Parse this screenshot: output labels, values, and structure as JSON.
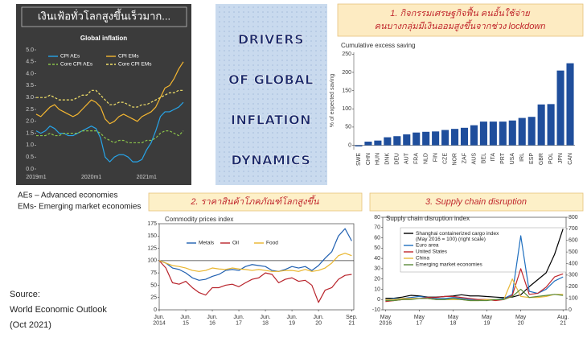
{
  "banner": [
    "DRIVERS",
    "OF GLOBAL",
    "INFLATION",
    "DYNAMICS"
  ],
  "notes": [
    "AEs – Advanced economies",
    "EMs- Emerging market economies"
  ],
  "source": [
    "Source:",
    "World Economic Outlook",
    "(Oct 2021)"
  ],
  "chart_data": [
    {
      "type": "line",
      "header": [
        "เงินเฟ้อทั่วโลกสูงขึ้นเร็วมาก..."
      ],
      "title": "Global inflation",
      "categories": [
        "2019m1",
        null,
        null,
        null,
        null,
        null,
        null,
        null,
        null,
        null,
        null,
        null,
        "2020m1",
        null,
        null,
        null,
        null,
        null,
        null,
        null,
        null,
        null,
        null,
        null,
        "2021m1",
        null,
        null,
        null,
        null,
        null,
        null,
        null,
        null
      ],
      "ylim": [
        0,
        5
      ],
      "yticks": [
        {
          "value": 0,
          "label": "0.0"
        },
        0.5,
        {
          "value": 1,
          "label": "1.0"
        },
        1.5,
        {
          "value": 2,
          "label": "2.0"
        },
        2.5,
        {
          "value": 3,
          "label": "3.0"
        },
        3.5,
        {
          "value": 4,
          "label": "4.0"
        },
        4.5,
        {
          "value": 5,
          "label": "5.0"
        }
      ],
      "grid": false,
      "series": [
        {
          "name": "CPI AEs",
          "color": "#27a4e8",
          "dashed": false,
          "values": [
            1.6,
            1.5,
            1.6,
            1.8,
            1.7,
            1.5,
            1.5,
            1.4,
            1.4,
            1.5,
            1.6,
            1.7,
            1.8,
            1.7,
            1.3,
            0.5,
            0.3,
            0.5,
            0.6,
            0.6,
            0.5,
            0.3,
            0.3,
            0.4,
            0.8,
            1.1,
            1.6,
            2.2,
            2.4,
            2.4,
            2.5,
            2.6,
            2.8
          ]
        },
        {
          "name": "CPI EMs",
          "color": "#f5b731",
          "dashed": false,
          "values": [
            2.3,
            2.2,
            2.4,
            2.6,
            2.7,
            2.5,
            2.4,
            2.3,
            2.2,
            2.3,
            2.5,
            2.7,
            2.9,
            2.8,
            2.6,
            2.1,
            1.9,
            2.0,
            2.2,
            2.3,
            2.2,
            2.1,
            2.0,
            2.2,
            2.3,
            2.4,
            2.6,
            3.0,
            3.4,
            3.5,
            3.8,
            4.2,
            4.5
          ]
        },
        {
          "name": "Core CPI AEs",
          "color": "#8bc34a",
          "dashed": true,
          "values": [
            1.4,
            1.4,
            1.4,
            1.5,
            1.4,
            1.4,
            1.5,
            1.5,
            1.5,
            1.5,
            1.6,
            1.6,
            1.6,
            1.6,
            1.5,
            1.3,
            1.2,
            1.1,
            1.2,
            1.2,
            1.1,
            1.1,
            1.1,
            1.1,
            1.2,
            1.2,
            1.3,
            1.5,
            1.6,
            1.6,
            1.5,
            1.4,
            1.6
          ]
        },
        {
          "name": "Core CPI EMs",
          "color": "#f5e36a",
          "dashed": true,
          "values": [
            3.0,
            3.0,
            3.0,
            3.1,
            3.0,
            2.9,
            2.9,
            2.9,
            2.9,
            3.0,
            3.1,
            3.1,
            3.3,
            3.3,
            3.1,
            2.9,
            2.7,
            2.7,
            2.8,
            2.8,
            2.7,
            2.6,
            2.6,
            2.7,
            2.7,
            2.8,
            2.9,
            3.0,
            3.1,
            3.2,
            3.2,
            3.3,
            3.3
          ]
        }
      ],
      "legend": "top"
    },
    {
      "type": "bar",
      "header": [
        "1. กิจกรรมเศรษฐกิจฟื้น คนอั้นใช้จ่าย",
        "คนบางกลุ่มมีเงินออมสูงขึ้นจากช่วง lockdown"
      ],
      "title": "Cumulative excess saving",
      "ylabel": "% of expected saving",
      "categories": [
        "SWE",
        "CHN",
        "HUN",
        "DNK",
        "DEU",
        "AUT",
        "FRA",
        "NLD",
        "FIN",
        "CZE",
        "NOR",
        "ZAF",
        "AUS",
        "BEL",
        "ITA",
        "PRT",
        "USA",
        "IRL",
        "ESP",
        "GBR",
        "POL",
        "JPN",
        "CAN"
      ],
      "values": [
        -3,
        10,
        13,
        22,
        25,
        30,
        35,
        37,
        38,
        42,
        45,
        48,
        55,
        65,
        65,
        65,
        68,
        75,
        78,
        112,
        113,
        205,
        225
      ],
      "color": "#1f4e9c",
      "ylim": [
        -12,
        255
      ],
      "yticks": [
        0,
        50,
        100,
        150,
        200,
        250
      ],
      "grid": false
    },
    {
      "type": "line",
      "header": [
        "2. ราคาสินค้าโภคภัณฑ์โลกสูงขึ้น"
      ],
      "title": "Commodity prices index",
      "x": [
        2014.42,
        2014.67,
        2014.92,
        2015.17,
        2015.42,
        2015.67,
        2015.92,
        2016.17,
        2016.42,
        2016.67,
        2016.92,
        2017.17,
        2017.42,
        2017.67,
        2017.92,
        2018.17,
        2018.42,
        2018.67,
        2018.92,
        2019.17,
        2019.42,
        2019.67,
        2019.92,
        2020.17,
        2020.42,
        2020.67,
        2020.92,
        2021.17,
        2021.42,
        2021.67
      ],
      "xlim": [
        2014.42,
        2021.75
      ],
      "xticks": [
        {
          "value": 2014.42,
          "label": "Jun.\n2014"
        },
        {
          "value": 2015.42,
          "label": "Jun.\n15"
        },
        {
          "value": 2016.42,
          "label": "Jun.\n16"
        },
        {
          "value": 2017.42,
          "label": "Jun.\n17"
        },
        {
          "value": 2018.42,
          "label": "Jun.\n18"
        },
        {
          "value": 2019.42,
          "label": "Jun.\n19"
        },
        {
          "value": 2020.42,
          "label": "Jun.\n20"
        },
        {
          "value": 2021.67,
          "label": "Sep.\n21"
        }
      ],
      "ylim": [
        0,
        175
      ],
      "yticks": [
        0,
        25,
        50,
        75,
        100,
        125,
        150,
        175
      ],
      "reference_line": 100,
      "grid": false,
      "series": [
        {
          "name": "Metals",
          "color": "#1f5fb0",
          "dashed": false,
          "values": [
            100,
            95,
            85,
            82,
            75,
            65,
            60,
            62,
            68,
            72,
            80,
            82,
            80,
            88,
            92,
            90,
            88,
            80,
            78,
            82,
            88,
            85,
            88,
            80,
            90,
            105,
            118,
            150,
            165,
            140
          ]
        },
        {
          "name": "Oil",
          "color": "#b8232b",
          "dashed": false,
          "values": [
            100,
            85,
            55,
            52,
            58,
            45,
            35,
            30,
            45,
            45,
            50,
            52,
            47,
            55,
            62,
            65,
            75,
            72,
            55,
            62,
            65,
            58,
            60,
            50,
            15,
            40,
            45,
            62,
            70,
            72
          ]
        },
        {
          "name": "Food",
          "color": "#e9b52c",
          "dashed": false,
          "values": [
            100,
            95,
            90,
            88,
            85,
            80,
            78,
            80,
            85,
            83,
            82,
            85,
            83,
            82,
            80,
            82,
            80,
            78,
            78,
            80,
            80,
            78,
            82,
            78,
            80,
            85,
            95,
            110,
            115,
            110
          ]
        }
      ],
      "legend": "top"
    },
    {
      "type": "line",
      "header": [
        "3. Supply chain disruption"
      ],
      "title": "Supply chain disruption index",
      "x": [
        2016.33,
        2016.58,
        2016.83,
        2017.08,
        2017.33,
        2017.58,
        2017.83,
        2018.08,
        2018.33,
        2018.58,
        2018.83,
        2019.08,
        2019.33,
        2019.58,
        2019.83,
        2020.08,
        2020.33,
        2020.58,
        2020.83,
        2021.08,
        2021.33,
        2021.58
      ],
      "xlim": [
        2016.25,
        2021.67
      ],
      "xticks": [
        {
          "value": 2016.33,
          "label": "May\n2016"
        },
        {
          "value": 2017.33,
          "label": "May\n17"
        },
        {
          "value": 2018.33,
          "label": "May\n18"
        },
        {
          "value": 2019.33,
          "label": "May\n19"
        },
        {
          "value": 2020.33,
          "label": "May\n20"
        },
        {
          "value": 2021.58,
          "label": "Aug.\n21"
        }
      ],
      "ylim": [
        -10,
        80
      ],
      "yticks": [
        -10,
        0,
        10,
        20,
        30,
        40,
        50,
        60,
        70,
        80
      ],
      "y2lim": [
        0,
        800
      ],
      "y2ticks": [
        0,
        100,
        200,
        300,
        400,
        500,
        600,
        700,
        800
      ],
      "grid": false,
      "series": [
        {
          "name": "Shanghai containerized cargo index (May 2016 = 100) (right scale)",
          "color": "#000000",
          "dashed": false,
          "axis": "y2",
          "values": [
            100,
            100,
            110,
            125,
            120,
            110,
            110,
            115,
            120,
            130,
            120,
            120,
            115,
            110,
            105,
            110,
            130,
            200,
            260,
            320,
            480,
            700
          ]
        },
        {
          "name": "Euro area",
          "color": "#1f6fbf",
          "dashed": false,
          "values": [
            0,
            1,
            1,
            2,
            3,
            2,
            1,
            1,
            2,
            1,
            0,
            0,
            0,
            0,
            1,
            5,
            62,
            8,
            6,
            10,
            18,
            22
          ]
        },
        {
          "name": "United States",
          "color": "#c0262c",
          "dashed": false,
          "values": [
            -2,
            -1,
            0,
            1,
            1,
            2,
            2,
            3,
            3,
            2,
            1,
            0,
            0,
            -1,
            0,
            4,
            30,
            5,
            6,
            12,
            22,
            25
          ]
        },
        {
          "name": "China",
          "color": "#e8b93a",
          "dashed": false,
          "values": [
            0,
            0,
            1,
            1,
            1,
            1,
            0,
            0,
            0,
            0,
            -1,
            -1,
            0,
            0,
            0,
            20,
            3,
            2,
            2,
            3,
            5,
            5
          ]
        },
        {
          "name": "Emerging market economies",
          "color": "#5a8a3a",
          "dashed": false,
          "values": [
            -1,
            -1,
            0,
            0,
            1,
            1,
            0,
            0,
            1,
            0,
            -1,
            -1,
            -1,
            0,
            0,
            3,
            10,
            2,
            3,
            4,
            5,
            4
          ]
        }
      ],
      "legend": "upper left"
    }
  ]
}
